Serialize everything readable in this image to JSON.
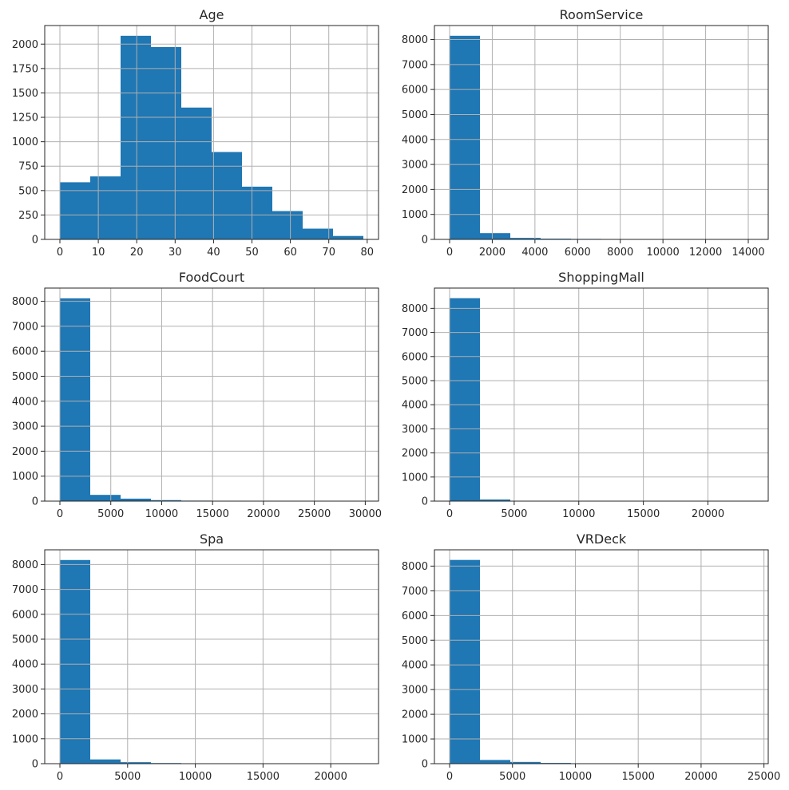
{
  "chart_data": [
    {
      "type": "bar",
      "title": "Age",
      "bar_color": "#1f77b4",
      "bin_edges": [
        0,
        7.9,
        15.8,
        23.7,
        31.6,
        39.5,
        47.4,
        55.3,
        63.2,
        71.1,
        79
      ],
      "values": [
        585,
        645,
        2085,
        1970,
        1350,
        895,
        540,
        290,
        110,
        35
      ],
      "xlim": [
        -3.95,
        82.95
      ],
      "ylim": [
        0,
        2190
      ],
      "xticks": [
        0,
        10,
        20,
        30,
        40,
        50,
        60,
        70,
        80
      ],
      "xtick_labels": [
        "0",
        "10",
        "20",
        "30",
        "40",
        "50",
        "60",
        "70",
        "80"
      ],
      "yticks": [
        0,
        250,
        500,
        750,
        1000,
        1250,
        1500,
        1750,
        2000
      ],
      "ytick_labels": [
        "0",
        "250",
        "500",
        "750",
        "1000",
        "1250",
        "1500",
        "1750",
        "2000"
      ],
      "grid": true
    },
    {
      "type": "bar",
      "title": "RoomService",
      "bar_color": "#1f77b4",
      "bin_edges": [
        0,
        1422.4,
        2844.8,
        4267.2,
        5689.6,
        7112,
        8534.4,
        9956.8,
        11379.2,
        12801.6,
        14224
      ],
      "values": [
        8150,
        250,
        60,
        30,
        20,
        15,
        5,
        3,
        2,
        1
      ],
      "xlim": [
        -711.2,
        14935.2
      ],
      "ylim": [
        0,
        8560
      ],
      "xticks": [
        0,
        2000,
        4000,
        6000,
        8000,
        10000,
        12000,
        14000
      ],
      "xtick_labels": [
        "0",
        "2000",
        "4000",
        "6000",
        "8000",
        "10000",
        "12000",
        "14000"
      ],
      "yticks": [
        0,
        1000,
        2000,
        3000,
        4000,
        5000,
        6000,
        7000,
        8000
      ],
      "ytick_labels": [
        "0",
        "1000",
        "2000",
        "3000",
        "4000",
        "5000",
        "6000",
        "7000",
        "8000"
      ],
      "grid": true
    },
    {
      "type": "bar",
      "title": "FoodCourt",
      "bar_color": "#1f77b4",
      "bin_edges": [
        0,
        2981.3,
        5962.6,
        8943.9,
        11925.2,
        14906.5,
        17887.8,
        20869.1,
        23850.4,
        26831.7,
        29813
      ],
      "values": [
        8120,
        250,
        100,
        40,
        20,
        8,
        4,
        2,
        1,
        1
      ],
      "xlim": [
        -1490.65,
        31303.65
      ],
      "ylim": [
        0,
        8530
      ],
      "xticks": [
        0,
        5000,
        10000,
        15000,
        20000,
        25000,
        30000
      ],
      "xtick_labels": [
        "0",
        "5000",
        "10000",
        "15000",
        "20000",
        "25000",
        "30000"
      ],
      "yticks": [
        0,
        1000,
        2000,
        3000,
        4000,
        5000,
        6000,
        7000,
        8000
      ],
      "ytick_labels": [
        "0",
        "1000",
        "2000",
        "3000",
        "4000",
        "5000",
        "6000",
        "7000",
        "8000"
      ],
      "grid": true
    },
    {
      "type": "bar",
      "title": "ShoppingMall",
      "bar_color": "#1f77b4",
      "bin_edges": [
        0,
        2349.2,
        4698.4,
        7047.6,
        9396.8,
        11746,
        14095.2,
        16444.4,
        18793.6,
        21142.8,
        23492
      ],
      "values": [
        8420,
        70,
        10,
        4,
        2,
        1,
        1,
        0,
        0,
        1
      ],
      "xlim": [
        -1174.6,
        24666.6
      ],
      "ylim": [
        0,
        8840
      ],
      "xticks": [
        0,
        5000,
        10000,
        15000,
        20000
      ],
      "xtick_labels": [
        "0",
        "5000",
        "10000",
        "15000",
        "20000"
      ],
      "yticks": [
        0,
        1000,
        2000,
        3000,
        4000,
        5000,
        6000,
        7000,
        8000
      ],
      "ytick_labels": [
        "0",
        "1000",
        "2000",
        "3000",
        "4000",
        "5000",
        "6000",
        "7000",
        "8000"
      ],
      "grid": true
    },
    {
      "type": "bar",
      "title": "Spa",
      "bar_color": "#1f77b4",
      "bin_edges": [
        0,
        2240.8,
        4481.6,
        6722.4,
        8963.2,
        11204,
        13444.8,
        15685.6,
        17926.4,
        20167.2,
        22408
      ],
      "values": [
        8180,
        170,
        60,
        25,
        10,
        5,
        3,
        2,
        1,
        1
      ],
      "xlim": [
        -1120.4,
        23528.4
      ],
      "ylim": [
        0,
        8590
      ],
      "xticks": [
        0,
        5000,
        10000,
        15000,
        20000
      ],
      "xtick_labels": [
        "0",
        "5000",
        "10000",
        "15000",
        "20000"
      ],
      "yticks": [
        0,
        1000,
        2000,
        3000,
        4000,
        5000,
        6000,
        7000,
        8000
      ],
      "ytick_labels": [
        "0",
        "1000",
        "2000",
        "3000",
        "4000",
        "5000",
        "6000",
        "7000",
        "8000"
      ],
      "grid": true
    },
    {
      "type": "bar",
      "title": "VRDeck",
      "bar_color": "#1f77b4",
      "bin_edges": [
        0,
        2413.3,
        4826.6,
        7239.9,
        9653.2,
        12066.5,
        14479.8,
        16893.1,
        19306.4,
        21719.7,
        24133
      ],
      "values": [
        8250,
        150,
        70,
        30,
        10,
        5,
        3,
        2,
        1,
        1
      ],
      "xlim": [
        -1206.65,
        25339.65
      ],
      "ylim": [
        0,
        8660
      ],
      "xticks": [
        0,
        5000,
        10000,
        15000,
        20000,
        25000
      ],
      "xtick_labels": [
        "0",
        "5000",
        "10000",
        "15000",
        "20000",
        "25000"
      ],
      "yticks": [
        0,
        1000,
        2000,
        3000,
        4000,
        5000,
        6000,
        7000,
        8000
      ],
      "ytick_labels": [
        "0",
        "1000",
        "2000",
        "3000",
        "4000",
        "5000",
        "6000",
        "7000",
        "8000"
      ],
      "grid": true
    }
  ]
}
